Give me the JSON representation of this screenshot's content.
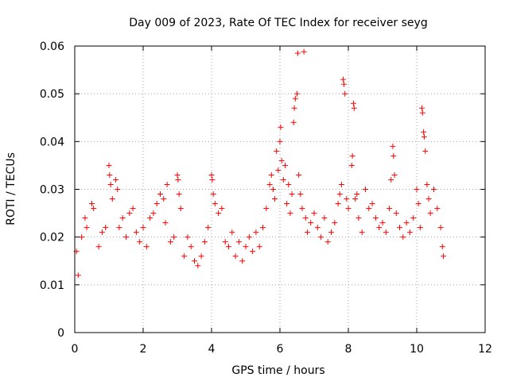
{
  "chart_data": {
    "type": "scatter",
    "title": "Day 009 of 2023, Rate Of TEC Index for receiver seyg",
    "xlabel": "GPS time / hours",
    "ylabel": "ROTI / TECUs",
    "xlim": [
      0,
      12
    ],
    "ylim": [
      0,
      0.06
    ],
    "x_ticks": [
      "0",
      "2",
      "4",
      "6",
      "8",
      "10",
      "12"
    ],
    "y_ticks": [
      "0",
      "0.01",
      "0.02",
      "0.03",
      "0.04",
      "0.05",
      "0.06"
    ],
    "grid": true,
    "marker": "+",
    "color": "#ff0000",
    "series": [
      {
        "points": [
          [
            0.05,
            0.017
          ],
          [
            0.1,
            0.012
          ],
          [
            0.2,
            0.02
          ],
          [
            0.3,
            0.024
          ],
          [
            0.35,
            0.022
          ],
          [
            0.5,
            0.027
          ],
          [
            0.55,
            0.026
          ],
          [
            0.7,
            0.018
          ],
          [
            0.8,
            0.021
          ],
          [
            0.9,
            0.022
          ],
          [
            1.0,
            0.035
          ],
          [
            1.02,
            0.033
          ],
          [
            1.05,
            0.031
          ],
          [
            1.1,
            0.028
          ],
          [
            1.2,
            0.032
          ],
          [
            1.25,
            0.03
          ],
          [
            1.3,
            0.022
          ],
          [
            1.4,
            0.024
          ],
          [
            1.5,
            0.02
          ],
          [
            1.6,
            0.025
          ],
          [
            1.7,
            0.026
          ],
          [
            1.8,
            0.021
          ],
          [
            1.9,
            0.019
          ],
          [
            2.0,
            0.022
          ],
          [
            2.1,
            0.018
          ],
          [
            2.2,
            0.024
          ],
          [
            2.3,
            0.025
          ],
          [
            2.4,
            0.027
          ],
          [
            2.5,
            0.029
          ],
          [
            2.6,
            0.028
          ],
          [
            2.65,
            0.023
          ],
          [
            2.7,
            0.031
          ],
          [
            2.8,
            0.019
          ],
          [
            2.9,
            0.02
          ],
          [
            3.0,
            0.033
          ],
          [
            3.02,
            0.032
          ],
          [
            3.05,
            0.029
          ],
          [
            3.1,
            0.026
          ],
          [
            3.2,
            0.016
          ],
          [
            3.3,
            0.02
          ],
          [
            3.4,
            0.018
          ],
          [
            3.5,
            0.015
          ],
          [
            3.6,
            0.014
          ],
          [
            3.7,
            0.016
          ],
          [
            3.8,
            0.019
          ],
          [
            3.9,
            0.022
          ],
          [
            4.0,
            0.033
          ],
          [
            4.02,
            0.032
          ],
          [
            4.05,
            0.029
          ],
          [
            4.1,
            0.027
          ],
          [
            4.2,
            0.025
          ],
          [
            4.3,
            0.026
          ],
          [
            4.4,
            0.019
          ],
          [
            4.5,
            0.018
          ],
          [
            4.6,
            0.021
          ],
          [
            4.7,
            0.016
          ],
          [
            4.8,
            0.019
          ],
          [
            4.9,
            0.015
          ],
          [
            5.0,
            0.018
          ],
          [
            5.1,
            0.02
          ],
          [
            5.2,
            0.017
          ],
          [
            5.3,
            0.021
          ],
          [
            5.4,
            0.018
          ],
          [
            5.5,
            0.022
          ],
          [
            5.6,
            0.026
          ],
          [
            5.7,
            0.031
          ],
          [
            5.75,
            0.033
          ],
          [
            5.8,
            0.03
          ],
          [
            5.85,
            0.028
          ],
          [
            5.9,
            0.038
          ],
          [
            5.95,
            0.034
          ],
          [
            6.0,
            0.04
          ],
          [
            6.02,
            0.043
          ],
          [
            6.05,
            0.036
          ],
          [
            6.1,
            0.032
          ],
          [
            6.15,
            0.035
          ],
          [
            6.2,
            0.027
          ],
          [
            6.25,
            0.031
          ],
          [
            6.3,
            0.025
          ],
          [
            6.35,
            0.029
          ],
          [
            6.4,
            0.044
          ],
          [
            6.42,
            0.047
          ],
          [
            6.45,
            0.049
          ],
          [
            6.5,
            0.05
          ],
          [
            6.52,
            0.0585
          ],
          [
            6.55,
            0.033
          ],
          [
            6.6,
            0.029
          ],
          [
            6.65,
            0.026
          ],
          [
            6.7,
            0.0588
          ],
          [
            6.75,
            0.024
          ],
          [
            6.8,
            0.021
          ],
          [
            6.9,
            0.023
          ],
          [
            7.0,
            0.025
          ],
          [
            7.1,
            0.022
          ],
          [
            7.2,
            0.02
          ],
          [
            7.3,
            0.024
          ],
          [
            7.4,
            0.019
          ],
          [
            7.5,
            0.021
          ],
          [
            7.6,
            0.023
          ],
          [
            7.7,
            0.027
          ],
          [
            7.75,
            0.029
          ],
          [
            7.8,
            0.031
          ],
          [
            7.85,
            0.053
          ],
          [
            7.87,
            0.052
          ],
          [
            7.9,
            0.05
          ],
          [
            7.95,
            0.028
          ],
          [
            8.0,
            0.026
          ],
          [
            8.1,
            0.035
          ],
          [
            8.12,
            0.037
          ],
          [
            8.15,
            0.048
          ],
          [
            8.17,
            0.047
          ],
          [
            8.2,
            0.028
          ],
          [
            8.25,
            0.029
          ],
          [
            8.3,
            0.024
          ],
          [
            8.4,
            0.021
          ],
          [
            8.5,
            0.03
          ],
          [
            8.6,
            0.026
          ],
          [
            8.7,
            0.027
          ],
          [
            8.8,
            0.024
          ],
          [
            8.9,
            0.022
          ],
          [
            9.0,
            0.023
          ],
          [
            9.1,
            0.021
          ],
          [
            9.2,
            0.026
          ],
          [
            9.25,
            0.032
          ],
          [
            9.3,
            0.039
          ],
          [
            9.32,
            0.037
          ],
          [
            9.35,
            0.033
          ],
          [
            9.4,
            0.025
          ],
          [
            9.5,
            0.022
          ],
          [
            9.6,
            0.02
          ],
          [
            9.7,
            0.023
          ],
          [
            9.8,
            0.021
          ],
          [
            9.9,
            0.024
          ],
          [
            10.0,
            0.03
          ],
          [
            10.05,
            0.027
          ],
          [
            10.1,
            0.022
          ],
          [
            10.15,
            0.047
          ],
          [
            10.17,
            0.046
          ],
          [
            10.2,
            0.042
          ],
          [
            10.22,
            0.041
          ],
          [
            10.25,
            0.038
          ],
          [
            10.3,
            0.031
          ],
          [
            10.35,
            0.028
          ],
          [
            10.4,
            0.025
          ],
          [
            10.5,
            0.03
          ],
          [
            10.6,
            0.026
          ],
          [
            10.7,
            0.022
          ],
          [
            10.75,
            0.018
          ],
          [
            10.78,
            0.016
          ]
        ]
      }
    ]
  }
}
